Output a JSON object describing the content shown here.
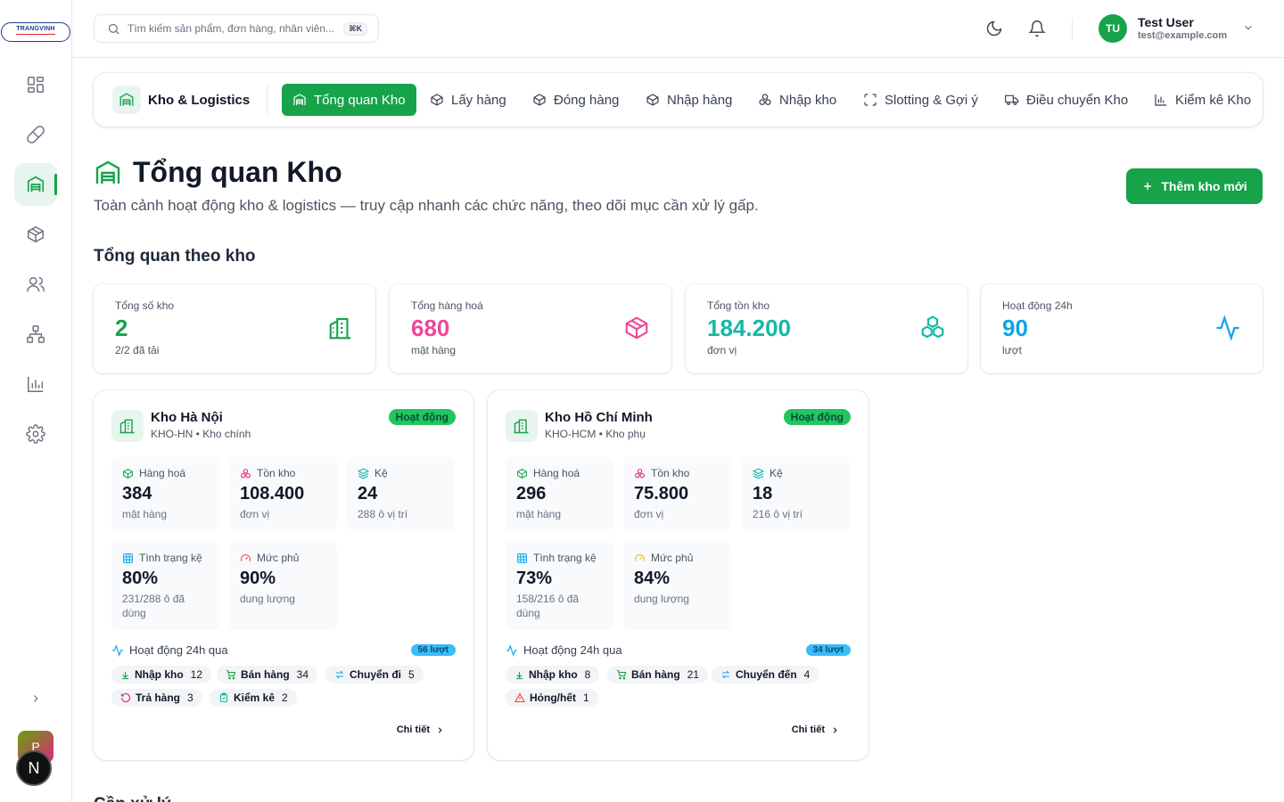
{
  "sidebar": {
    "logo_text": "TRANGVINH",
    "items": [
      {
        "icon": "dashboard-icon"
      },
      {
        "icon": "pill-icon"
      },
      {
        "icon": "warehouse-icon",
        "active": true
      },
      {
        "icon": "package-icon"
      },
      {
        "icon": "users-icon"
      },
      {
        "icon": "network-icon"
      },
      {
        "icon": "chart-icon"
      },
      {
        "icon": "settings-icon"
      }
    ],
    "avatar_p": "P",
    "avatar_n": "N"
  },
  "header": {
    "search_placeholder": "Tìm kiếm sản phẩm, đơn hàng, nhân viên...",
    "search_shortcut": "⌘K",
    "user_initials": "TU",
    "user_name": "Test User",
    "user_email": "test@example.com"
  },
  "tabs": {
    "module_label": "Kho & Logistics",
    "items": [
      {
        "label": "Tổng quan Kho",
        "active": true
      },
      {
        "label": "Lấy hàng"
      },
      {
        "label": "Đóng hàng"
      },
      {
        "label": "Nhập hàng"
      },
      {
        "label": "Nhập kho"
      },
      {
        "label": "Slotting & Gợi ý"
      },
      {
        "label": "Điều chuyển Kho"
      },
      {
        "label": "Kiểm kê Kho"
      }
    ]
  },
  "page": {
    "title": "Tổng quan Kho",
    "subtitle": "Toàn cảnh hoạt động kho & logistics — truy cập nhanh các chức năng, theo dõi mục cần xử lý gấp.",
    "add_button": "Thêm kho mới",
    "section_title": "Tổng quan theo kho",
    "next_section": "Cần xử lý"
  },
  "stats": [
    {
      "label": "Tổng số kho",
      "value": "2",
      "unit": "2/2 đã tải",
      "color": "#16a34a"
    },
    {
      "label": "Tổng hàng hoá",
      "value": "680",
      "unit": "mặt hàng",
      "color": "#ec4899"
    },
    {
      "label": "Tổng tồn kho",
      "value": "184.200",
      "unit": "đơn vị",
      "color": "#14b8a6"
    },
    {
      "label": "Hoạt động 24h",
      "value": "90",
      "unit": "lượt",
      "color": "#0ea5e9"
    }
  ],
  "warehouses": [
    {
      "name": "Kho Hà Nội",
      "code": "KHO-HN • Kho chính",
      "status": "Hoạt động",
      "metrics": [
        {
          "label": "Hàng hoá",
          "value": "384",
          "unit": "mặt hàng"
        },
        {
          "label": "Tồn kho",
          "value": "108.400",
          "unit": "đơn vị"
        },
        {
          "label": "Kệ",
          "value": "24",
          "unit": "288 ô vị trí"
        },
        {
          "label": "Tình trạng kệ",
          "value": "80%",
          "unit": "231/288 ô đã dùng"
        },
        {
          "label": "Mức phủ",
          "value": "90%",
          "unit": "dung lượng"
        }
      ],
      "activity_label": "Hoạt động 24h qua",
      "activity_count": "56 lượt",
      "chips": [
        {
          "label": "Nhập kho",
          "count": "12"
        },
        {
          "label": "Bán hàng",
          "count": "34"
        },
        {
          "label": "Chuyển đi",
          "count": "5"
        },
        {
          "label": "Trả hàng",
          "count": "3"
        },
        {
          "label": "Kiểm kê",
          "count": "2"
        }
      ],
      "details": "Chi tiết"
    },
    {
      "name": "Kho Hồ Chí Minh",
      "code": "KHO-HCM • Kho phụ",
      "status": "Hoạt động",
      "metrics": [
        {
          "label": "Hàng hoá",
          "value": "296",
          "unit": "mặt hàng"
        },
        {
          "label": "Tồn kho",
          "value": "75.800",
          "unit": "đơn vị"
        },
        {
          "label": "Kệ",
          "value": "18",
          "unit": "216 ô vị trí"
        },
        {
          "label": "Tình trạng kệ",
          "value": "73%",
          "unit": "158/216 ô đã dùng"
        },
        {
          "label": "Mức phủ",
          "value": "84%",
          "unit": "dung lượng"
        }
      ],
      "activity_label": "Hoạt động 24h qua",
      "activity_count": "34 lượt",
      "chips": [
        {
          "label": "Nhập kho",
          "count": "8"
        },
        {
          "label": "Bán hàng",
          "count": "21"
        },
        {
          "label": "Chuyển đến",
          "count": "4"
        },
        {
          "label": "Hỏng/hết",
          "count": "1"
        }
      ],
      "details": "Chi tiết"
    }
  ]
}
